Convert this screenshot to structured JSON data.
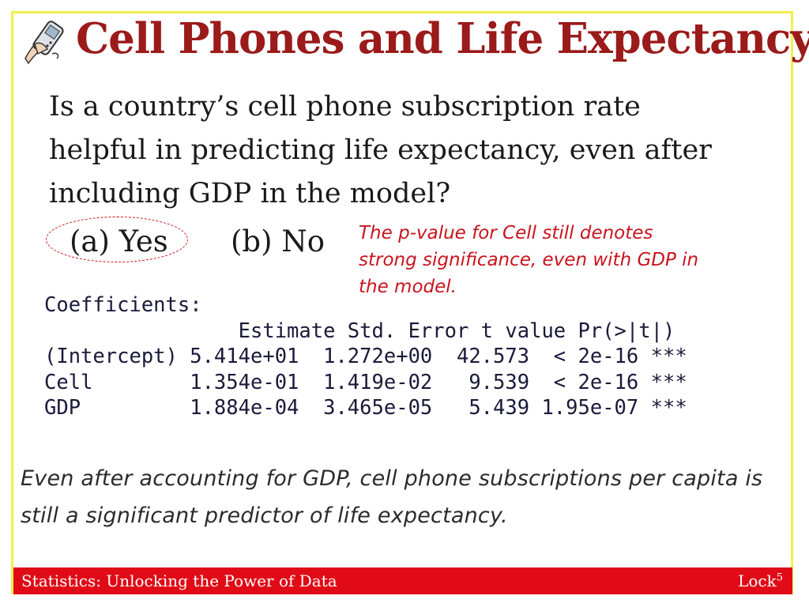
{
  "slide": {
    "title": "Cell Phones and Life Expectancy",
    "icon": "cell-phone-in-hand-icon",
    "question": "Is a country’s cell phone subscription rate helpful in predicting life expectancy, even after including GDP in the model?",
    "choices": [
      {
        "label": "(a) Yes",
        "selected": true
      },
      {
        "label": "(b) No",
        "selected": false
      }
    ],
    "annotation": "The p-value for Cell still denotes strong significance, even with GDP in the model.",
    "regression_output": [
      "Coefficients:",
      "                Estimate Std. Error t value Pr(>|t|)",
      "(Intercept) 5.414e+01  1.272e+00  42.573  < 2e-16 ***",
      "Cell        1.354e-01  1.419e-02   9.539  < 2e-16 ***",
      "GDP         1.884e-04  3.465e-05   5.439 1.95e-07 ***"
    ],
    "conclusion": "Even after accounting for GDP, cell phone subscriptions per capita is still a significant predictor of life expectancy."
  },
  "footer": {
    "left": "Statistics: Unlocking the Power of Data",
    "right": "Lock",
    "right_sup": "5"
  },
  "colors": {
    "title": "#9b1a1a",
    "annotation": "#c8141e",
    "footer_bg": "#e00b17",
    "frame": "#f0f04a"
  }
}
